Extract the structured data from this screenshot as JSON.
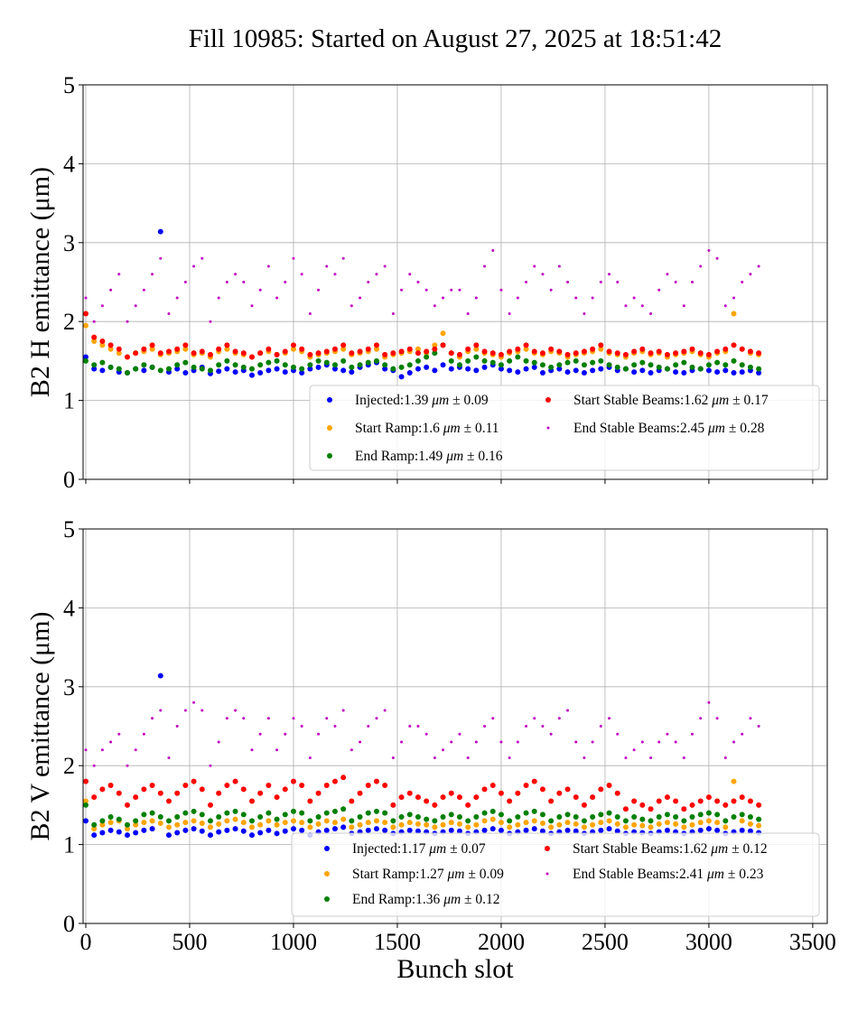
{
  "title": "Fill 10985: Started on August 27, 2025 at 18:51:42",
  "xlabel": "Bunch slot",
  "colors": {
    "Injected": "#0000ff",
    "Start Ramp": "#ffa500",
    "End Ramp": "#008000",
    "Start Stable Beams": "#ff0000",
    "End Stable Beams": "#bf00bf"
  },
  "chart_data": [
    {
      "type": "scatter",
      "ylabel": "B2 H emittance (μm)",
      "xlim": [
        -13,
        3570
      ],
      "ylim": [
        0,
        5
      ],
      "xticks": [
        0,
        500,
        1000,
        1500,
        2000,
        2500,
        3000,
        3500
      ],
      "yticks": [
        0,
        1,
        2,
        3,
        4,
        5
      ],
      "show_xtick_labels": false,
      "grid": true,
      "legend_placement": "lower-right",
      "x": [
        0,
        40,
        80,
        120,
        160,
        200,
        240,
        280,
        320,
        360,
        400,
        440,
        480,
        520,
        560,
        600,
        640,
        680,
        720,
        760,
        800,
        840,
        880,
        920,
        960,
        1000,
        1040,
        1080,
        1120,
        1160,
        1200,
        1240,
        1280,
        1320,
        1360,
        1400,
        1440,
        1480,
        1520,
        1560,
        1600,
        1640,
        1680,
        1720,
        1760,
        1800,
        1840,
        1880,
        1920,
        1960,
        2000,
        2040,
        2080,
        2120,
        2160,
        2200,
        2240,
        2280,
        2320,
        2360,
        2400,
        2440,
        2480,
        2520,
        2560,
        2600,
        2640,
        2680,
        2720,
        2760,
        2800,
        2840,
        2880,
        2920,
        2960,
        3000,
        3040,
        3080,
        3120,
        3160,
        3200,
        3240
      ],
      "series": [
        {
          "name": "Injected",
          "mean": "1.39",
          "std": "0.09",
          "unit": "μm",
          "y": [
            1.55,
            1.4,
            1.38,
            1.42,
            1.36,
            1.35,
            1.4,
            1.38,
            1.42,
            3.14,
            1.36,
            1.4,
            1.35,
            1.38,
            1.42,
            1.34,
            1.37,
            1.4,
            1.36,
            1.38,
            1.32,
            1.35,
            1.38,
            1.4,
            1.36,
            1.38,
            1.35,
            1.4,
            1.42,
            1.45,
            1.4,
            1.38,
            1.36,
            1.42,
            1.45,
            1.48,
            1.4,
            1.38,
            1.3,
            1.35,
            1.4,
            1.42,
            1.38,
            1.45,
            1.4,
            1.42,
            1.4,
            1.38,
            1.42,
            1.45,
            1.4,
            1.38,
            1.36,
            1.4,
            1.42,
            1.35,
            1.38,
            1.4,
            1.36,
            1.38,
            1.35,
            1.38,
            1.4,
            1.42,
            1.38,
            1.4,
            1.36,
            1.38,
            1.35,
            1.38,
            1.4,
            1.36,
            1.35,
            1.38,
            1.4,
            1.38,
            1.36,
            1.38,
            1.35,
            1.36,
            1.38,
            1.35
          ]
        },
        {
          "name": "Start Ramp",
          "mean": "1.6",
          "std": "0.11",
          "unit": "μm",
          "y": [
            1.95,
            1.75,
            1.7,
            1.65,
            1.6,
            1.55,
            1.6,
            1.62,
            1.65,
            1.58,
            1.6,
            1.62,
            1.65,
            1.58,
            1.6,
            1.55,
            1.62,
            1.65,
            1.6,
            1.58,
            1.55,
            1.6,
            1.62,
            1.58,
            1.6,
            1.65,
            1.62,
            1.55,
            1.58,
            1.6,
            1.62,
            1.65,
            1.58,
            1.6,
            1.62,
            1.65,
            1.55,
            1.58,
            1.6,
            1.62,
            1.65,
            1.6,
            1.7,
            1.85,
            1.6,
            1.55,
            1.62,
            1.65,
            1.6,
            1.58,
            1.55,
            1.6,
            1.62,
            1.65,
            1.6,
            1.58,
            1.62,
            1.6,
            1.55,
            1.58,
            1.6,
            1.62,
            1.65,
            1.6,
            1.58,
            1.55,
            1.6,
            1.62,
            1.58,
            1.6,
            1.55,
            1.58,
            1.6,
            1.62,
            1.58,
            1.55,
            1.6,
            1.62,
            2.1,
            1.65,
            1.6,
            1.58
          ]
        },
        {
          "name": "End Ramp",
          "mean": "1.49",
          "std": "0.16",
          "unit": "μm",
          "y": [
            1.5,
            1.45,
            1.48,
            1.42,
            1.4,
            1.35,
            1.4,
            1.45,
            1.42,
            1.38,
            1.4,
            1.45,
            1.48,
            1.42,
            1.4,
            1.38,
            1.45,
            1.5,
            1.45,
            1.42,
            1.4,
            1.45,
            1.48,
            1.5,
            1.45,
            1.42,
            1.4,
            1.45,
            1.5,
            1.48,
            1.45,
            1.5,
            1.42,
            1.45,
            1.48,
            1.5,
            1.45,
            1.4,
            1.42,
            1.45,
            1.5,
            1.55,
            1.6,
            1.7,
            1.5,
            1.45,
            1.5,
            1.55,
            1.5,
            1.48,
            1.45,
            1.5,
            1.55,
            1.5,
            1.48,
            1.45,
            1.42,
            1.45,
            1.48,
            1.5,
            1.45,
            1.48,
            1.5,
            1.45,
            1.42,
            1.4,
            1.45,
            1.48,
            1.45,
            1.42,
            1.4,
            1.45,
            1.48,
            1.42,
            1.4,
            1.45,
            1.48,
            1.45,
            1.5,
            1.45,
            1.42,
            1.4
          ]
        },
        {
          "name": "Start Stable Beams",
          "mean": "1.62",
          "std": "0.17",
          "unit": "μm",
          "y": [
            2.1,
            1.8,
            1.75,
            1.7,
            1.65,
            1.55,
            1.6,
            1.65,
            1.7,
            1.6,
            1.62,
            1.65,
            1.7,
            1.6,
            1.62,
            1.58,
            1.65,
            1.7,
            1.62,
            1.6,
            1.55,
            1.6,
            1.65,
            1.58,
            1.62,
            1.7,
            1.65,
            1.58,
            1.6,
            1.62,
            1.65,
            1.7,
            1.6,
            1.62,
            1.65,
            1.7,
            1.58,
            1.6,
            1.62,
            1.65,
            1.6,
            1.62,
            1.65,
            1.7,
            1.6,
            1.58,
            1.65,
            1.7,
            1.62,
            1.6,
            1.58,
            1.62,
            1.65,
            1.7,
            1.62,
            1.6,
            1.65,
            1.62,
            1.58,
            1.6,
            1.62,
            1.65,
            1.7,
            1.62,
            1.6,
            1.58,
            1.62,
            1.65,
            1.6,
            1.62,
            1.58,
            1.6,
            1.62,
            1.65,
            1.6,
            1.58,
            1.62,
            1.65,
            1.7,
            1.65,
            1.62,
            1.6
          ]
        },
        {
          "name": "End Stable Beams",
          "mean": "2.45",
          "std": "0.28",
          "unit": "μm",
          "y": [
            2.3,
            2.0,
            2.2,
            2.4,
            2.6,
            2.0,
            2.2,
            2.4,
            2.6,
            2.8,
            2.1,
            2.3,
            2.5,
            2.7,
            2.8,
            2.0,
            2.3,
            2.5,
            2.6,
            2.5,
            2.2,
            2.4,
            2.7,
            2.3,
            2.5,
            2.8,
            2.6,
            2.1,
            2.4,
            2.7,
            2.6,
            2.8,
            2.2,
            2.3,
            2.5,
            2.6,
            2.7,
            2.1,
            2.4,
            2.6,
            2.5,
            2.4,
            2.2,
            2.3,
            2.4,
            2.4,
            2.1,
            2.3,
            2.7,
            2.9,
            2.4,
            2.1,
            2.3,
            2.5,
            2.7,
            2.6,
            2.4,
            2.7,
            2.5,
            2.3,
            2.1,
            2.3,
            2.5,
            2.6,
            2.5,
            2.2,
            2.3,
            2.2,
            2.1,
            2.4,
            2.6,
            2.5,
            2.2,
            2.5,
            2.7,
            2.9,
            2.8,
            2.2,
            2.3,
            2.5,
            2.6,
            2.7
          ]
        }
      ]
    },
    {
      "type": "scatter",
      "ylabel": "B2 V emittance (μm)",
      "xlabel": "Bunch slot",
      "xlim": [
        -13,
        3570
      ],
      "ylim": [
        0,
        5
      ],
      "xticks": [
        0,
        500,
        1000,
        1500,
        2000,
        2500,
        3000,
        3500
      ],
      "yticks": [
        0,
        1,
        2,
        3,
        4,
        5
      ],
      "show_xtick_labels": true,
      "grid": true,
      "legend_placement": "lower-right",
      "x": [
        0,
        40,
        80,
        120,
        160,
        200,
        240,
        280,
        320,
        360,
        400,
        440,
        480,
        520,
        560,
        600,
        640,
        680,
        720,
        760,
        800,
        840,
        880,
        920,
        960,
        1000,
        1040,
        1080,
        1120,
        1160,
        1200,
        1240,
        1280,
        1320,
        1360,
        1400,
        1440,
        1480,
        1520,
        1560,
        1600,
        1640,
        1680,
        1720,
        1760,
        1800,
        1840,
        1880,
        1920,
        1960,
        2000,
        2040,
        2080,
        2120,
        2160,
        2200,
        2240,
        2280,
        2320,
        2360,
        2400,
        2440,
        2480,
        2520,
        2560,
        2600,
        2640,
        2680,
        2720,
        2760,
        2800,
        2840,
        2880,
        2920,
        2960,
        3000,
        3040,
        3080,
        3120,
        3160,
        3200,
        3240
      ],
      "series": [
        {
          "name": "Injected",
          "mean": "1.17",
          "std": "0.07",
          "unit": "μm",
          "y": [
            1.3,
            1.12,
            1.15,
            1.18,
            1.16,
            1.12,
            1.15,
            1.18,
            1.2,
            3.14,
            1.12,
            1.15,
            1.18,
            1.2,
            1.17,
            1.12,
            1.16,
            1.18,
            1.2,
            1.17,
            1.12,
            1.15,
            1.18,
            1.14,
            1.17,
            1.2,
            1.18,
            1.12,
            1.16,
            1.18,
            1.2,
            1.22,
            1.14,
            1.16,
            1.18,
            1.2,
            1.18,
            1.14,
            1.16,
            1.18,
            1.17,
            1.16,
            1.14,
            1.16,
            1.18,
            1.17,
            1.14,
            1.16,
            1.18,
            1.2,
            1.18,
            1.14,
            1.16,
            1.18,
            1.2,
            1.17,
            1.14,
            1.16,
            1.18,
            1.17,
            1.14,
            1.16,
            1.18,
            1.2,
            1.17,
            1.14,
            1.16,
            1.15,
            1.14,
            1.16,
            1.18,
            1.16,
            1.14,
            1.16,
            1.18,
            1.2,
            1.18,
            1.14,
            1.16,
            1.18,
            1.17,
            1.15
          ]
        },
        {
          "name": "Start Ramp",
          "mean": "1.27",
          "std": "0.09",
          "unit": "μm",
          "y": [
            1.55,
            1.2,
            1.25,
            1.28,
            1.3,
            1.2,
            1.25,
            1.28,
            1.3,
            1.27,
            1.22,
            1.25,
            1.28,
            1.3,
            1.27,
            1.22,
            1.26,
            1.3,
            1.32,
            1.28,
            1.22,
            1.25,
            1.3,
            1.25,
            1.28,
            1.3,
            1.28,
            1.22,
            1.26,
            1.3,
            1.28,
            1.32,
            1.22,
            1.25,
            1.28,
            1.3,
            1.28,
            1.22,
            1.25,
            1.28,
            1.26,
            1.25,
            1.22,
            1.25,
            1.28,
            1.26,
            1.22,
            1.25,
            1.3,
            1.32,
            1.28,
            1.22,
            1.25,
            1.28,
            1.3,
            1.27,
            1.22,
            1.25,
            1.28,
            1.26,
            1.22,
            1.25,
            1.28,
            1.3,
            1.26,
            1.22,
            1.25,
            1.24,
            1.22,
            1.26,
            1.28,
            1.26,
            1.22,
            1.25,
            1.28,
            1.3,
            1.28,
            1.22,
            1.8,
            1.3,
            1.26,
            1.24
          ]
        },
        {
          "name": "End Ramp",
          "mean": "1.36",
          "std": "0.12",
          "unit": "μm",
          "y": [
            1.5,
            1.25,
            1.3,
            1.35,
            1.32,
            1.25,
            1.3,
            1.38,
            1.4,
            1.35,
            1.3,
            1.35,
            1.4,
            1.42,
            1.38,
            1.3,
            1.35,
            1.4,
            1.42,
            1.38,
            1.3,
            1.35,
            1.4,
            1.32,
            1.38,
            1.42,
            1.4,
            1.3,
            1.35,
            1.4,
            1.42,
            1.45,
            1.3,
            1.35,
            1.4,
            1.42,
            1.4,
            1.3,
            1.35,
            1.38,
            1.35,
            1.32,
            1.3,
            1.35,
            1.38,
            1.35,
            1.3,
            1.35,
            1.4,
            1.42,
            1.38,
            1.3,
            1.35,
            1.4,
            1.42,
            1.38,
            1.3,
            1.35,
            1.38,
            1.35,
            1.3,
            1.35,
            1.38,
            1.4,
            1.35,
            1.3,
            1.35,
            1.32,
            1.3,
            1.35,
            1.38,
            1.35,
            1.3,
            1.35,
            1.38,
            1.4,
            1.38,
            1.3,
            1.35,
            1.38,
            1.35,
            1.32
          ]
        },
        {
          "name": "Start Stable Beams",
          "mean": "1.62",
          "std": "0.12",
          "unit": "μm",
          "y": [
            1.8,
            1.6,
            1.7,
            1.75,
            1.65,
            1.5,
            1.6,
            1.7,
            1.75,
            1.65,
            1.55,
            1.65,
            1.75,
            1.8,
            1.7,
            1.5,
            1.65,
            1.75,
            1.8,
            1.7,
            1.55,
            1.65,
            1.75,
            1.6,
            1.7,
            1.8,
            1.75,
            1.55,
            1.65,
            1.75,
            1.8,
            1.85,
            1.55,
            1.65,
            1.75,
            1.8,
            1.75,
            1.5,
            1.6,
            1.65,
            1.6,
            1.55,
            1.5,
            1.6,
            1.65,
            1.6,
            1.5,
            1.6,
            1.7,
            1.75,
            1.65,
            1.55,
            1.65,
            1.75,
            1.8,
            1.7,
            1.55,
            1.65,
            1.7,
            1.6,
            1.5,
            1.6,
            1.7,
            1.75,
            1.65,
            1.45,
            1.55,
            1.5,
            1.45,
            1.55,
            1.6,
            1.55,
            1.45,
            1.5,
            1.55,
            1.6,
            1.55,
            1.5,
            1.55,
            1.6,
            1.55,
            1.5
          ]
        },
        {
          "name": "End Stable Beams",
          "mean": "2.41",
          "std": "0.23",
          "unit": "μm",
          "y": [
            2.2,
            2.0,
            2.2,
            2.3,
            2.4,
            2.0,
            2.2,
            2.4,
            2.6,
            2.7,
            2.1,
            2.5,
            2.7,
            2.8,
            2.7,
            2.0,
            2.3,
            2.6,
            2.7,
            2.6,
            2.2,
            2.4,
            2.6,
            2.2,
            2.4,
            2.6,
            2.5,
            2.1,
            2.4,
            2.6,
            2.5,
            2.7,
            2.2,
            2.3,
            2.5,
            2.6,
            2.7,
            2.1,
            2.3,
            2.5,
            2.5,
            2.4,
            2.1,
            2.2,
            2.3,
            2.4,
            2.1,
            2.3,
            2.5,
            2.6,
            2.3,
            2.1,
            2.3,
            2.5,
            2.6,
            2.5,
            2.4,
            2.6,
            2.7,
            2.3,
            2.1,
            2.3,
            2.5,
            2.6,
            2.4,
            2.1,
            2.2,
            2.3,
            2.1,
            2.3,
            2.4,
            2.3,
            2.1,
            2.4,
            2.6,
            2.8,
            2.6,
            2.1,
            2.3,
            2.4,
            2.6,
            2.5
          ]
        }
      ]
    }
  ]
}
